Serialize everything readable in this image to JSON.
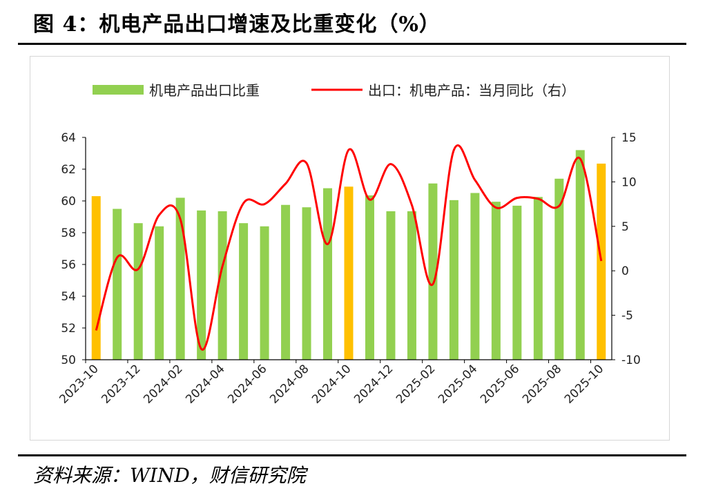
{
  "header": {
    "title": "图 4：机电产品出口增速及比重变化（%）"
  },
  "footer": {
    "source": "资料来源：WIND，财信研究院"
  },
  "chart_data": {
    "type": "bar+line",
    "title": "机电产品出口增速及比重变化（%）",
    "categories": [
      "2023-10",
      "2023-11",
      "2023-12",
      "2024-01",
      "2024-02",
      "2024-03",
      "2024-04",
      "2024-05",
      "2024-06",
      "2024-07",
      "2024-08",
      "2024-09",
      "2024-10",
      "2024-11",
      "2024-12",
      "2025-01",
      "2025-02",
      "2025-03",
      "2025-04",
      "2025-05",
      "2025-06",
      "2025-07",
      "2025-08",
      "2025-09",
      "2025-10"
    ],
    "x_tick_labels": [
      "2023-10",
      "2023-12",
      "2024-02",
      "2024-04",
      "2024-06",
      "2024-08",
      "2024-10",
      "2024-12",
      "2025-02",
      "2025-04",
      "2025-06",
      "2025-08",
      "2025-10"
    ],
    "series": [
      {
        "name": "机电产品出口比重",
        "type": "bar",
        "axis": "left",
        "color": "#92d050",
        "highlight_color": "#ffc000",
        "highlight_categories": [
          "2023-10",
          "2024-10",
          "2025-10"
        ],
        "values": [
          60.3,
          59.5,
          58.6,
          58.4,
          60.2,
          59.4,
          59.35,
          58.6,
          58.4,
          59.75,
          59.6,
          60.8,
          60.9,
          60.35,
          59.35,
          59.35,
          61.1,
          60.05,
          60.5,
          59.95,
          59.7,
          60.25,
          61.4,
          63.2,
          62.35
        ]
      },
      {
        "name": "出口：机电产品：当月同比（右）",
        "type": "line",
        "axis": "right",
        "color": "#ff0000",
        "values": [
          -6.7,
          1.5,
          0.2,
          6.3,
          5.8,
          -8.8,
          0.5,
          7.6,
          7.5,
          9.8,
          12.1,
          3.0,
          13.6,
          8.0,
          12.0,
          7.4,
          -1.5,
          13.6,
          10.2,
          7.1,
          8.2,
          8.1,
          7.3,
          12.6,
          1.1
        ]
      }
    ],
    "y_left": {
      "min": 50,
      "max": 64,
      "ticks": [
        50,
        52,
        54,
        56,
        58,
        60,
        62,
        64
      ]
    },
    "y_right": {
      "min": -10,
      "max": 15,
      "ticks": [
        -10,
        -5,
        0,
        5,
        10,
        15
      ]
    },
    "legend_position": "top"
  }
}
